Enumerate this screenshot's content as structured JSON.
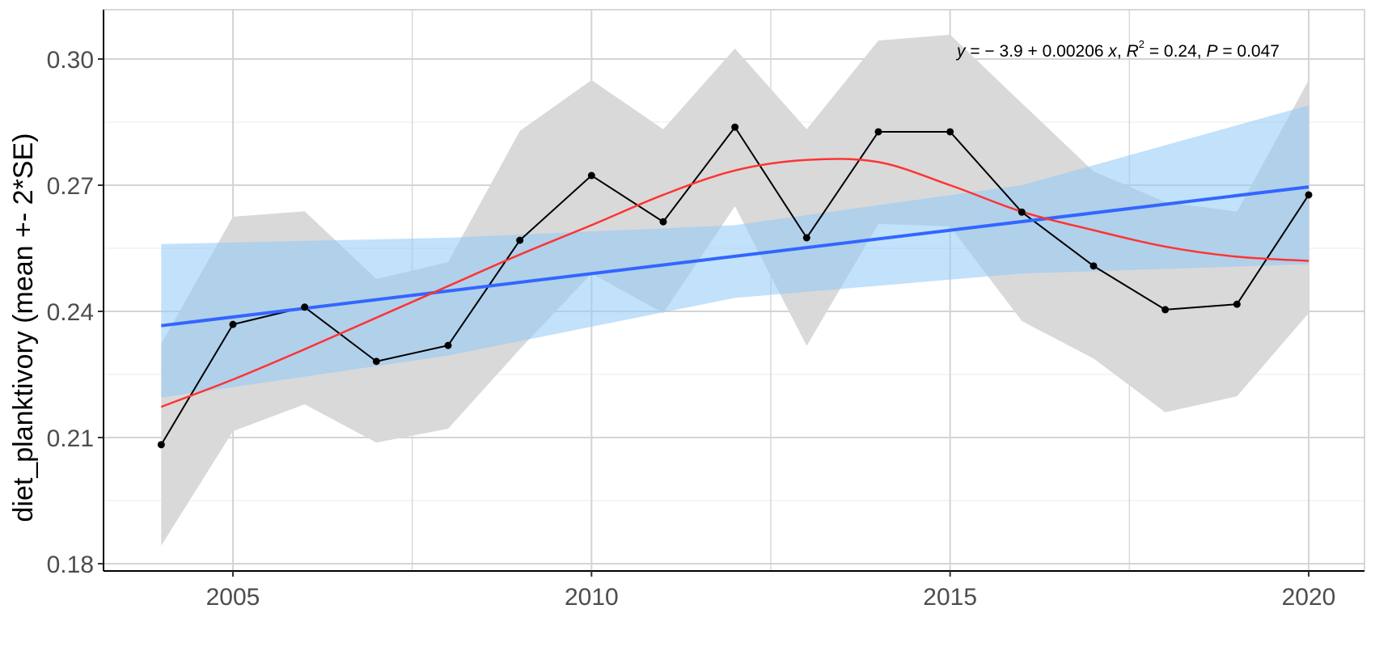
{
  "chart_data": {
    "type": "line",
    "title": "",
    "xlabel": "",
    "ylabel": "diet_planktivory (mean +- 2*SE)",
    "xlim": [
      2003.0,
      2020.8
    ],
    "ylim": [
      0.1785,
      0.3118
    ],
    "grid": true,
    "x_ticks": [
      2005,
      2010,
      2015,
      2020
    ],
    "x_tick_labels": [
      "2005",
      "2010",
      "2015",
      "2020"
    ],
    "y_ticks": [
      0.18,
      0.21,
      0.24,
      0.27,
      0.3
    ],
    "y_tick_labels": [
      "0.18",
      "0.21",
      "0.24",
      "0.27",
      "0.30"
    ],
    "x": [
      2004,
      2005,
      2006,
      2007,
      2008,
      2009,
      2010,
      2011,
      2012,
      2013,
      2014,
      2015,
      2016,
      2017,
      2018,
      2019,
      2020
    ],
    "series": [
      {
        "name": "mean",
        "kind": "line+points",
        "color": "#000000",
        "values": [
          0.2083,
          0.2369,
          0.241,
          0.2281,
          0.2319,
          0.2569,
          0.2723,
          0.2613,
          0.2838,
          0.2575,
          0.2827,
          0.2827,
          0.2636,
          0.2508,
          0.2404,
          0.2417,
          0.2677
        ]
      },
      {
        "name": "mean + 2*SE",
        "kind": "ribbon-upper",
        "color": "#d9d9d9",
        "values": [
          0.2323,
          0.2625,
          0.2638,
          0.2477,
          0.2517,
          0.2829,
          0.295,
          0.2833,
          0.3025,
          0.2833,
          0.3044,
          0.3058,
          0.2895,
          0.2733,
          0.266,
          0.2637,
          0.295
        ]
      },
      {
        "name": "mean - 2*SE",
        "kind": "ribbon-lower",
        "color": "#d9d9d9",
        "values": [
          0.1843,
          0.2115,
          0.2179,
          0.2088,
          0.2121,
          0.231,
          0.249,
          0.2396,
          0.265,
          0.2318,
          0.2608,
          0.2602,
          0.2377,
          0.2288,
          0.216,
          0.2198,
          0.2396
        ]
      },
      {
        "name": "linear fit",
        "kind": "line",
        "color": "#3366ff",
        "x": [
          2004,
          2020
        ],
        "values": [
          0.2366,
          0.2696
        ]
      },
      {
        "name": "linear fit CI upper",
        "kind": "ribbon-upper",
        "color": "#99ccff",
        "x": [
          2004,
          2008,
          2012,
          2016,
          2020
        ],
        "values": [
          0.256,
          0.2575,
          0.2605,
          0.27,
          0.289
        ]
      },
      {
        "name": "linear fit CI lower",
        "kind": "ribbon-lower",
        "color": "#99ccff",
        "x": [
          2004,
          2008,
          2012,
          2016,
          2020
        ],
        "values": [
          0.2195,
          0.2295,
          0.2432,
          0.249,
          0.2512
        ]
      },
      {
        "name": "loess smooth",
        "kind": "line",
        "color": "#ff3333",
        "x": [
          2004,
          2005,
          2006,
          2007,
          2008,
          2009,
          2010,
          2011,
          2012,
          2013,
          2014,
          2015,
          2016,
          2017,
          2018,
          2019,
          2020
        ],
        "values": [
          0.2173,
          0.2238,
          0.231,
          0.2385,
          0.246,
          0.2535,
          0.2605,
          0.2677,
          0.2735,
          0.276,
          0.2755,
          0.27,
          0.2637,
          0.2593,
          0.2554,
          0.253,
          0.252
        ]
      }
    ],
    "annotations": [
      {
        "text": "y = − 3.9 + 0.00206 x, R² = 0.24, P = 0.047",
        "x": 2015.1,
        "y": 0.3015
      }
    ],
    "legend": "none"
  },
  "labels": {
    "ylabel": "diet_planktivory (mean +- 2*SE)",
    "equation": {
      "y": "y",
      "eq_body": " = − 3.9 + 0.00206 ",
      "x": "x",
      "sep1": ", ",
      "r": "R",
      "r_sup": "2",
      "r_val": " = 0.24, ",
      "p": "P",
      "p_val": " = 0.047"
    }
  }
}
